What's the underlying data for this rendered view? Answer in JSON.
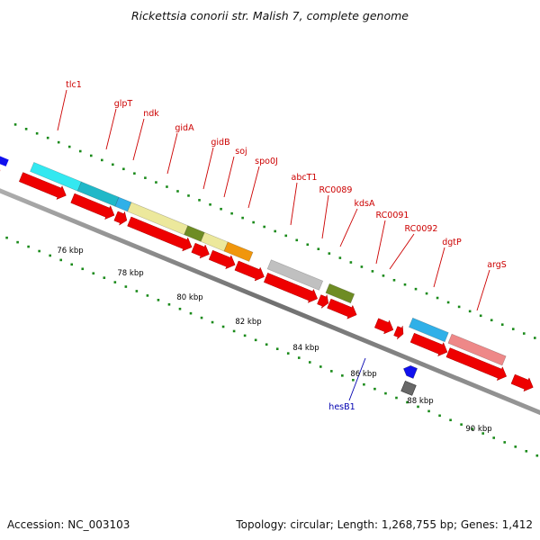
{
  "title": "Rickettsia conorii str. Malish 7, complete genome",
  "footer": {
    "accession": "Accession: NC_003103",
    "summary": "Topology: circular; Length: 1,268,755 bp; Genes: 1,412"
  },
  "colors": {
    "backbone": "#888888",
    "forward_arrow": "#ee0000",
    "dots": "#1a8a1a",
    "label_forward": "#cc0000",
    "label_reverse": "#0000b0"
  },
  "scale_ticks": [
    "76 kbp",
    "78 kbp",
    "80 kbp",
    "82 kbp",
    "84 kbp",
    "86 kbp",
    "88 kbp",
    "90 kbp"
  ],
  "gene_labels": [
    {
      "name": "tlc1",
      "strand": "forward"
    },
    {
      "name": "glpT",
      "strand": "forward"
    },
    {
      "name": "ndk",
      "strand": "forward"
    },
    {
      "name": "gidA",
      "strand": "forward"
    },
    {
      "name": "gidB",
      "strand": "forward"
    },
    {
      "name": "soj",
      "strand": "forward"
    },
    {
      "name": "spo0J",
      "strand": "forward"
    },
    {
      "name": "abcT1",
      "strand": "forward"
    },
    {
      "name": "RC0089",
      "strand": "forward"
    },
    {
      "name": "kdsA",
      "strand": "forward"
    },
    {
      "name": "RC0091",
      "strand": "forward"
    },
    {
      "name": "RC0092",
      "strand": "forward"
    },
    {
      "name": "dgtP",
      "strand": "forward"
    },
    {
      "name": "argS",
      "strand": "forward"
    },
    {
      "name": "hesB1",
      "strand": "reverse"
    }
  ],
  "cog_color_bars": [
    {
      "color": "#33e8f0"
    },
    {
      "color": "#20b8c8"
    },
    {
      "color": "#30b0e8"
    },
    {
      "color": "#ece89c"
    },
    {
      "color": "#6e8c24"
    },
    {
      "color": "#ece89c"
    },
    {
      "color": "#f0960c"
    },
    {
      "color": "#c0c0c0"
    },
    {
      "color": "#6e8c24"
    },
    {
      "color": "#30b0e8"
    },
    {
      "color": "#ee8888"
    },
    {
      "color": "#ee22aa"
    }
  ]
}
